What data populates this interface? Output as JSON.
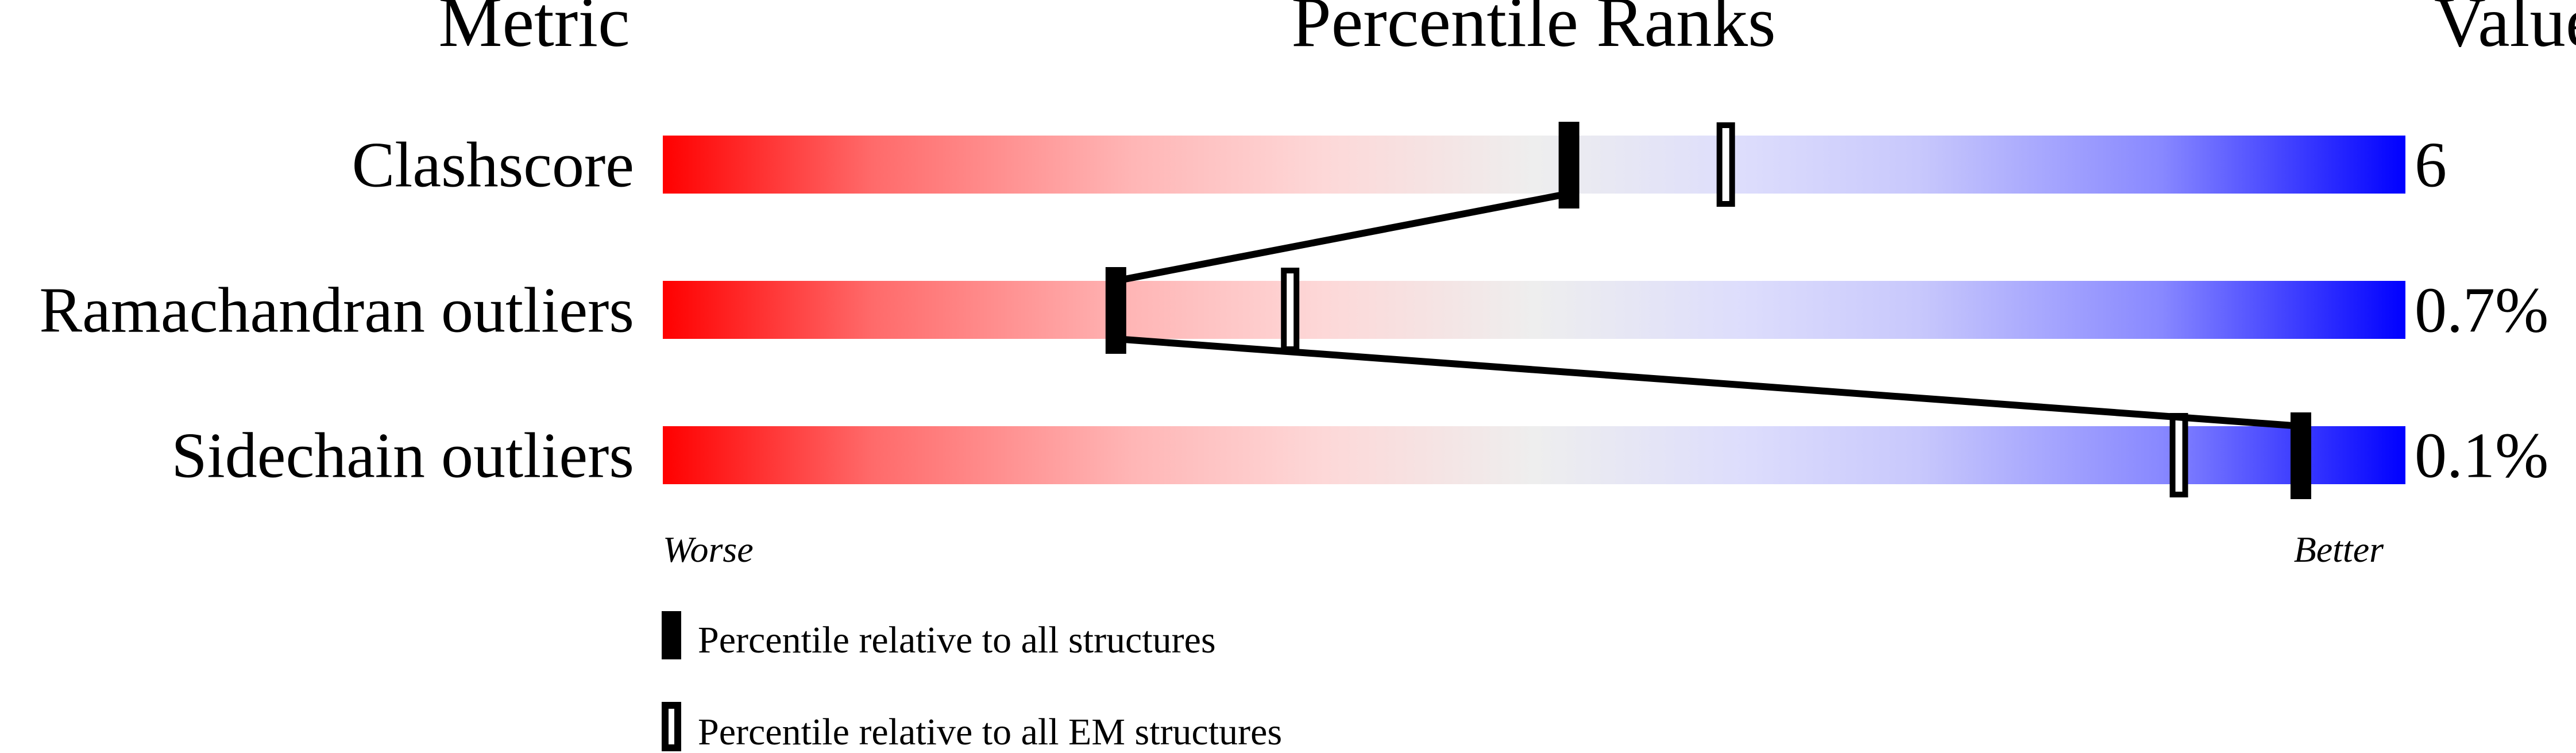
{
  "chart_data": {
    "type": "percentile-slider",
    "headers": {
      "metric": "Metric",
      "ranks": "Percentile Ranks",
      "value": "Value"
    },
    "axis": {
      "min": 0,
      "max": 100,
      "left_label": "Worse",
      "right_label": "Better"
    },
    "gradient_colors": {
      "worse": "#ff0000",
      "middle": "#eeeeee",
      "better": "#0000ff"
    },
    "rows": [
      {
        "metric": "Clashscore",
        "value": "6",
        "percentile_all": 52,
        "percentile_em": 61
      },
      {
        "metric": "Ramachandran outliers",
        "value": "0.7%",
        "percentile_all": 26,
        "percentile_em": 36
      },
      {
        "metric": "Sidechain outliers",
        "value": "0.1%",
        "percentile_all": 94,
        "percentile_em": 87
      }
    ],
    "legend": [
      {
        "marker": "filled",
        "label": "Percentile relative to all structures"
      },
      {
        "marker": "hollow",
        "label": "Percentile relative to all EM structures"
      }
    ]
  }
}
